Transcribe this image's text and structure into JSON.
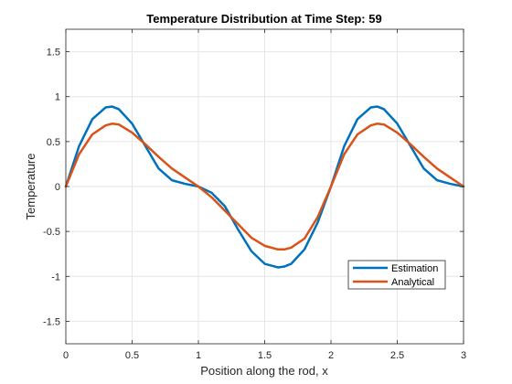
{
  "chart_data": {
    "type": "line",
    "title": "Temperature Distribution at Time Step: 59",
    "xlabel": "Position along the rod, x",
    "ylabel": "Temperature",
    "xlim": [
      0,
      3
    ],
    "ylim": [
      -1.75,
      1.75
    ],
    "xticks": [
      0,
      0.5,
      1,
      1.5,
      2,
      2.5,
      3
    ],
    "xtick_labels": [
      "0",
      "0.5",
      "1",
      "1.5",
      "2",
      "2.5",
      "3"
    ],
    "yticks": [
      -1.5,
      -1,
      -0.5,
      0,
      0.5,
      1,
      1.5
    ],
    "ytick_labels": [
      "-1.5",
      "-1",
      "-0.5",
      "0",
      "0.5",
      "1",
      "1.5"
    ],
    "grid": true,
    "legend_position": "bottom-right",
    "series": [
      {
        "name": "Estimation",
        "color": "#0072BD",
        "x": [
          0,
          0.1,
          0.2,
          0.3,
          0.35,
          0.4,
          0.5,
          0.6,
          0.7,
          0.8,
          0.9,
          1.0,
          1.1,
          1.2,
          1.3,
          1.4,
          1.5,
          1.6,
          1.65,
          1.7,
          1.8,
          1.9,
          2.0,
          2.1,
          2.2,
          2.3,
          2.35,
          2.4,
          2.5,
          2.6,
          2.7,
          2.8,
          2.9,
          3.0
        ],
        "y": [
          0,
          0.45,
          0.75,
          0.88,
          0.89,
          0.86,
          0.7,
          0.45,
          0.2,
          0.07,
          0.03,
          0.0,
          -0.07,
          -0.22,
          -0.48,
          -0.72,
          -0.86,
          -0.9,
          -0.89,
          -0.86,
          -0.7,
          -0.4,
          0.0,
          0.45,
          0.75,
          0.88,
          0.89,
          0.86,
          0.7,
          0.45,
          0.2,
          0.07,
          0.03,
          0.0
        ]
      },
      {
        "name": "Analytical",
        "color": "#D95319",
        "x": [
          0,
          0.1,
          0.2,
          0.3,
          0.35,
          0.4,
          0.5,
          0.6,
          0.7,
          0.8,
          0.9,
          1.0,
          1.1,
          1.2,
          1.3,
          1.4,
          1.5,
          1.6,
          1.65,
          1.7,
          1.8,
          1.9,
          2.0,
          2.1,
          2.2,
          2.3,
          2.35,
          2.4,
          2.5,
          2.6,
          2.7,
          2.8,
          2.9,
          3.0
        ],
        "y": [
          0,
          0.36,
          0.58,
          0.68,
          0.7,
          0.69,
          0.6,
          0.47,
          0.33,
          0.2,
          0.1,
          0.0,
          -0.12,
          -0.27,
          -0.42,
          -0.57,
          -0.66,
          -0.7,
          -0.7,
          -0.68,
          -0.58,
          -0.34,
          0.0,
          0.36,
          0.58,
          0.68,
          0.7,
          0.69,
          0.6,
          0.47,
          0.33,
          0.2,
          0.1,
          0.0
        ]
      }
    ]
  }
}
